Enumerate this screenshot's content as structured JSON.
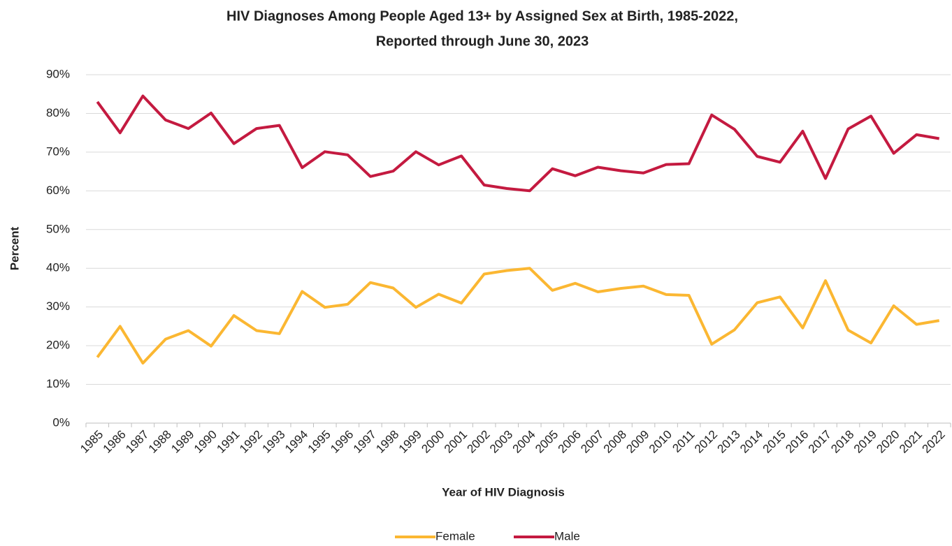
{
  "chart_data": {
    "type": "line",
    "title": [
      "HIV Diagnoses Among People Aged 13+ by Assigned Sex at Birth, 1985-2022,",
      "Reported through June 30, 2023"
    ],
    "x_label": "Year of HIV Diagnosis",
    "y_label": "Percent",
    "categories": [
      "1985",
      "1986",
      "1987",
      "1988",
      "1989",
      "1990",
      "1991",
      "1992",
      "1993",
      "1994",
      "1995",
      "1996",
      "1997",
      "1998",
      "1999",
      "2000",
      "2001",
      "2002",
      "2003",
      "2004",
      "2005",
      "2006",
      "2007",
      "2008",
      "2009",
      "2010",
      "2011",
      "2012",
      "2013",
      "2014",
      "2015",
      "2016",
      "2017",
      "2018",
      "2019",
      "2020",
      "2021",
      "2022"
    ],
    "series": [
      {
        "name": "Female",
        "color": "#fbb732",
        "values": [
          17,
          25,
          15.5,
          21.7,
          23.9,
          19.9,
          27.8,
          23.9,
          23.1,
          34,
          29.9,
          30.7,
          36.3,
          34.9,
          29.9,
          33.3,
          31,
          38.5,
          39.4,
          40,
          34.3,
          36.1,
          33.9,
          34.8,
          35.4,
          33.2,
          33,
          20.4,
          24.1,
          31.1,
          32.6,
          24.6,
          36.8,
          24,
          20.7,
          30.3,
          25.5,
          26.5
        ]
      },
      {
        "name": "Male",
        "color": "#c41a40",
        "values": [
          83,
          75,
          84.5,
          78.3,
          76.1,
          80.1,
          72.2,
          76.1,
          76.9,
          66,
          70.1,
          69.3,
          63.7,
          65.1,
          70.1,
          66.7,
          69,
          61.5,
          60.6,
          60,
          65.7,
          63.9,
          66.1,
          65.2,
          64.6,
          66.8,
          67,
          79.6,
          75.9,
          68.9,
          67.4,
          75.4,
          63.2,
          76,
          79.3,
          69.7,
          74.5,
          73.5
        ]
      }
    ],
    "ylim": [
      0,
      90
    ],
    "yticks": [
      {
        "value": 0,
        "label": "0%"
      },
      {
        "value": 10,
        "label": "10%"
      },
      {
        "value": 20,
        "label": "20%"
      },
      {
        "value": 30,
        "label": "30%"
      },
      {
        "value": 40,
        "label": "40%"
      },
      {
        "value": 50,
        "label": "50%"
      },
      {
        "value": 60,
        "label": "60%"
      },
      {
        "value": 70,
        "label": "70%"
      },
      {
        "value": 80,
        "label": "80%"
      },
      {
        "value": 90,
        "label": "90%"
      }
    ],
    "grid": true,
    "legend": "bottom"
  }
}
